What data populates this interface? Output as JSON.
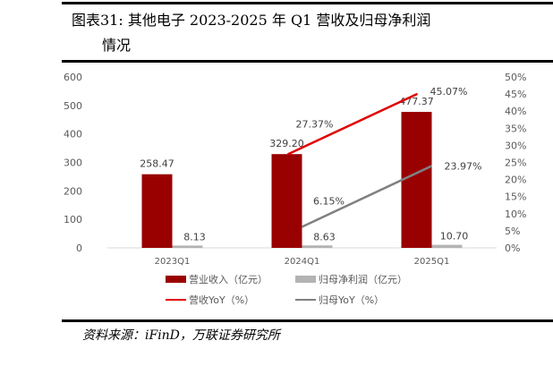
{
  "title": {
    "line1": "图表31:  其他电子 2023-2025 年 Q1 营收及归母净利润",
    "line2": "情况"
  },
  "source": "资料来源：iFinD，万联证券研究所",
  "chart_data": {
    "type": "bar",
    "categories": [
      "2023Q1",
      "2024Q1",
      "2025Q1"
    ],
    "series": [
      {
        "name": "营业收入（亿元）",
        "kind": "bar",
        "axis": "left",
        "color": "#990000",
        "values": [
          258.47,
          329.2,
          477.37
        ],
        "labels": [
          "258.47",
          "329.20",
          "477.37"
        ]
      },
      {
        "name": "归母净利润（亿元）",
        "kind": "bar",
        "axis": "left",
        "color": "#b3b3b3",
        "values": [
          8.13,
          8.63,
          10.7
        ],
        "labels": [
          "8.13",
          "8.63",
          "10.70"
        ]
      },
      {
        "name": "营收YoY（%）",
        "kind": "line",
        "axis": "right",
        "color": "#e00000",
        "values": [
          null,
          27.37,
          45.07
        ],
        "labels": [
          "",
          "27.37%",
          "45.07%"
        ]
      },
      {
        "name": "归母YoY（%）",
        "kind": "line",
        "axis": "right",
        "color": "#808080",
        "values": [
          null,
          6.15,
          23.97
        ],
        "labels": [
          "",
          "6.15%",
          "23.97%"
        ]
      }
    ],
    "left_axis": {
      "ylim": [
        0,
        600
      ],
      "ticks": [
        "0",
        "100",
        "200",
        "300",
        "400",
        "500",
        "600"
      ]
    },
    "right_axis": {
      "ylim": [
        0,
        50
      ],
      "ticks": [
        "0%",
        "5%",
        "10%",
        "15%",
        "20%",
        "25%",
        "30%",
        "35%",
        "40%",
        "45%",
        "50%"
      ]
    },
    "grid": false,
    "legend": "bottom"
  }
}
